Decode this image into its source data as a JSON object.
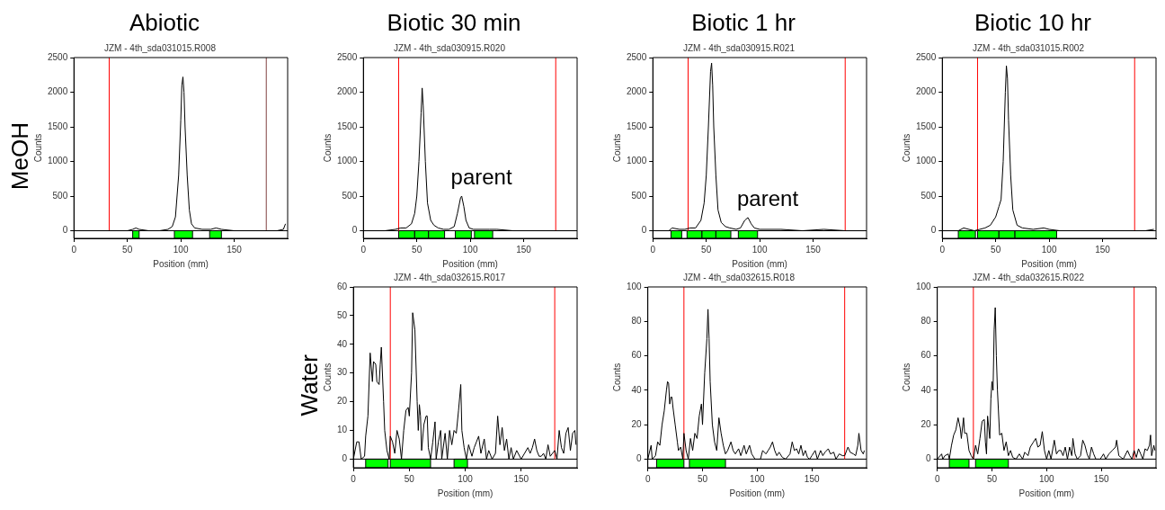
{
  "chart_data": [
    {
      "type": "line",
      "title": "Abiotic",
      "subtitle": "JZM - 4th_sda031015.R008",
      "xlabel": "Position (mm)",
      "ylabel": "Counts",
      "annotations": [
        "MeOH"
      ],
      "xlim": [
        0,
        200
      ],
      "xticks": [
        0,
        50,
        100,
        150
      ],
      "ylim": [
        -110,
        2500
      ],
      "yticks": [
        0,
        500,
        1000,
        1500,
        2000,
        2500
      ],
      "grid": false,
      "legend": false,
      "marker": "none",
      "series": [
        {
          "color": "#000000",
          "x": [
            0,
            10,
            20,
            30,
            40,
            50,
            55,
            58,
            61,
            70,
            80,
            88,
            92,
            95,
            98,
            100,
            101,
            102,
            103,
            104,
            106,
            108,
            110,
            113,
            120,
            128,
            133,
            138,
            150,
            160,
            170,
            180,
            190,
            196,
            198
          ],
          "values": [
            0,
            0,
            0,
            0,
            0,
            0,
            20,
            40,
            20,
            0,
            0,
            20,
            60,
            200,
            800,
            1600,
            2100,
            2220,
            2000,
            1500,
            800,
            300,
            100,
            40,
            20,
            20,
            40,
            20,
            0,
            0,
            0,
            0,
            0,
            20,
            100
          ]
        }
      ],
      "ref_lines": [
        {
          "axis": "y",
          "value": 0,
          "color": "#000000"
        },
        {
          "axis": "x",
          "value": 33,
          "color": "#ff0000"
        },
        {
          "axis": "x",
          "value": 180,
          "color": "#804040"
        }
      ],
      "bands": [
        {
          "axis": "x",
          "from": 55,
          "to": 61,
          "color": "#00ff00"
        },
        {
          "axis": "x",
          "from": 94,
          "to": 111,
          "color": "#00ff00"
        },
        {
          "axis": "x",
          "from": 127,
          "to": 138,
          "color": "#00ff00"
        }
      ]
    },
    {
      "type": "line",
      "title": "Biotic 30 min",
      "subtitle": "JZM - 4th_sda030915.R020",
      "xlabel": "Position (mm)",
      "ylabel": "Counts",
      "annotations": [
        {
          "text": "parent",
          "x": 92,
          "y": 500
        }
      ],
      "xlim": [
        0,
        200
      ],
      "xticks": [
        0,
        50,
        100,
        150
      ],
      "ylim": [
        -110,
        2500
      ],
      "yticks": [
        0,
        500,
        1000,
        1500,
        2000,
        2500
      ],
      "grid": false,
      "legend": false,
      "marker": "none",
      "series": [
        {
          "color": "#000000",
          "x": [
            0,
            10,
            20,
            30,
            35,
            40,
            45,
            48,
            50,
            52,
            54,
            55,
            56,
            58,
            60,
            63,
            66,
            70,
            75,
            80,
            85,
            88,
            91,
            92,
            94,
            96,
            99,
            103,
            110,
            118,
            125,
            140,
            160,
            180,
            198
          ],
          "values": [
            0,
            0,
            0,
            20,
            40,
            40,
            100,
            250,
            500,
            1000,
            1700,
            2060,
            1800,
            1000,
            400,
            150,
            80,
            40,
            20,
            20,
            60,
            250,
            480,
            500,
            350,
            150,
            40,
            20,
            20,
            20,
            20,
            0,
            0,
            0,
            0
          ]
        }
      ],
      "ref_lines": [
        {
          "axis": "y",
          "value": 0,
          "color": "#000000"
        },
        {
          "axis": "x",
          "value": 33,
          "color": "#ff0000"
        },
        {
          "axis": "x",
          "value": 180,
          "color": "#ff0000"
        }
      ],
      "bands": [
        {
          "axis": "x",
          "from": 33,
          "to": 48,
          "color": "#00ff00"
        },
        {
          "axis": "x",
          "from": 48,
          "to": 61,
          "color": "#00ff00"
        },
        {
          "axis": "x",
          "from": 61,
          "to": 76,
          "color": "#00ff00"
        },
        {
          "axis": "x",
          "from": 86,
          "to": 101,
          "color": "#00ff00"
        },
        {
          "axis": "x",
          "from": 104,
          "to": 121,
          "color": "#00ff00"
        }
      ]
    },
    {
      "type": "line",
      "title": "Biotic 1 hr",
      "subtitle": "JZM - 4th_sda030915.R021",
      "xlabel": "Position (mm)",
      "ylabel": "Counts",
      "annotations": [
        {
          "text": "parent",
          "x": 89,
          "y": 190
        }
      ],
      "xlim": [
        0,
        200
      ],
      "xticks": [
        0,
        50,
        100,
        150
      ],
      "ylim": [
        -110,
        2500
      ],
      "yticks": [
        0,
        500,
        1000,
        1500,
        2000,
        2500
      ],
      "grid": false,
      "legend": false,
      "marker": "none",
      "series": [
        {
          "color": "#000000",
          "x": [
            0,
            15,
            18,
            25,
            30,
            35,
            40,
            45,
            48,
            50,
            52,
            54,
            55,
            56,
            57,
            59,
            61,
            64,
            68,
            72,
            78,
            82,
            86,
            89,
            92,
            95,
            100,
            120,
            140,
            160,
            180,
            198
          ],
          "values": [
            0,
            0,
            40,
            20,
            20,
            40,
            40,
            150,
            400,
            800,
            1500,
            2300,
            2420,
            2100,
            1500,
            800,
            300,
            120,
            60,
            40,
            20,
            40,
            150,
            190,
            100,
            40,
            20,
            20,
            0,
            20,
            0,
            0
          ]
        }
      ],
      "ref_lines": [
        {
          "axis": "y",
          "value": 0,
          "color": "#000000"
        },
        {
          "axis": "x",
          "value": 33,
          "color": "#ff0000"
        },
        {
          "axis": "x",
          "value": 180,
          "color": "#ff0000"
        }
      ],
      "bands": [
        {
          "axis": "x",
          "from": 17,
          "to": 27,
          "color": "#00ff00"
        },
        {
          "axis": "x",
          "from": 32,
          "to": 46,
          "color": "#00ff00"
        },
        {
          "axis": "x",
          "from": 46,
          "to": 59,
          "color": "#00ff00"
        },
        {
          "axis": "x",
          "from": 59,
          "to": 73,
          "color": "#00ff00"
        },
        {
          "axis": "x",
          "from": 80,
          "to": 98,
          "color": "#00ff00"
        }
      ]
    },
    {
      "type": "line",
      "title": "Biotic 10 hr",
      "subtitle": "JZM - 4th_sda031015.R002",
      "xlabel": "Position (mm)",
      "ylabel": "Counts",
      "xlim": [
        0,
        200
      ],
      "xticks": [
        0,
        50,
        100,
        150
      ],
      "ylim": [
        -110,
        2500
      ],
      "yticks": [
        0,
        500,
        1000,
        1500,
        2000,
        2500
      ],
      "grid": false,
      "legend": false,
      "marker": "none",
      "series": [
        {
          "color": "#000000",
          "x": [
            0,
            15,
            20,
            25,
            30,
            35,
            40,
            45,
            50,
            53,
            55,
            57,
            59,
            60,
            61,
            62,
            64,
            66,
            70,
            75,
            85,
            95,
            100,
            110,
            130,
            150,
            170,
            190,
            198
          ],
          "values": [
            0,
            0,
            40,
            20,
            0,
            20,
            40,
            80,
            200,
            350,
            450,
            1000,
            2000,
            2380,
            2200,
            1600,
            800,
            300,
            80,
            40,
            20,
            40,
            20,
            0,
            0,
            0,
            0,
            0,
            20
          ]
        }
      ],
      "ref_lines": [
        {
          "axis": "y",
          "value": 0,
          "color": "#000000"
        },
        {
          "axis": "x",
          "value": 33,
          "color": "#ff0000"
        },
        {
          "axis": "x",
          "value": 180,
          "color": "#ff0000"
        }
      ],
      "bands": [
        {
          "axis": "x",
          "from": 15,
          "to": 31,
          "color": "#00ff00"
        },
        {
          "axis": "x",
          "from": 33,
          "to": 53,
          "color": "#00ff00"
        },
        {
          "axis": "x",
          "from": 53,
          "to": 68,
          "color": "#00ff00"
        },
        {
          "axis": "x",
          "from": 68,
          "to": 107,
          "color": "#00ff00"
        }
      ]
    },
    {
      "type": "line",
      "subtitle": "JZM - 4th_sda032615.R017",
      "xlabel": "Position (mm)",
      "ylabel": "Counts",
      "annotations": [
        "Water"
      ],
      "xlim": [
        0,
        200
      ],
      "xticks": [
        0,
        50,
        100,
        150
      ],
      "ylim": [
        -3,
        60
      ],
      "yticks": [
        0,
        10,
        20,
        30,
        40,
        50,
        60
      ],
      "grid": false,
      "legend": false,
      "marker": "none",
      "series": [
        {
          "color": "#000000",
          "x": [
            0,
            3,
            5,
            7,
            10,
            11,
            13,
            15,
            17,
            18,
            20,
            21,
            23,
            24,
            25,
            27,
            28,
            30,
            32,
            33,
            35,
            37,
            39,
            41,
            43,
            45,
            47,
            49,
            50,
            52,
            53,
            55,
            57,
            58,
            59,
            60,
            61,
            63,
            65,
            66,
            67,
            69,
            71,
            73,
            74,
            76,
            78,
            79,
            82,
            84,
            86,
            88,
            90,
            92,
            94,
            96,
            97,
            99,
            101,
            103,
            106,
            108,
            110,
            112,
            114,
            117,
            119,
            121,
            124,
            127,
            129,
            131,
            133,
            135,
            137,
            139,
            141,
            143,
            146,
            150,
            153,
            156,
            158,
            160,
            162,
            164,
            166,
            168,
            170,
            172,
            174,
            176,
            178,
            180,
            182,
            184,
            186,
            188,
            190,
            192,
            194,
            196,
            198,
            199
          ],
          "values": [
            0,
            6,
            6,
            0,
            1,
            8,
            15,
            37,
            27,
            34,
            33,
            27,
            26,
            33,
            39,
            20,
            10,
            3,
            0,
            8,
            6,
            2,
            10,
            7,
            0,
            10,
            17,
            18,
            15,
            30,
            51,
            45,
            20,
            10,
            19,
            15,
            3,
            12,
            15,
            15,
            4,
            0,
            6,
            13,
            0,
            6,
            10,
            0,
            9,
            0,
            10,
            5,
            10,
            9,
            17,
            26,
            10,
            4,
            0,
            5,
            1,
            4,
            6,
            8,
            2,
            7,
            0,
            3,
            0,
            2,
            15,
            5,
            11,
            3,
            7,
            0,
            4,
            0,
            3,
            0,
            2,
            4,
            2,
            4,
            7,
            3,
            1,
            1,
            2,
            0,
            5,
            1,
            2,
            3,
            0,
            10,
            4,
            2,
            9,
            11,
            3,
            9,
            10,
            5
          ]
        }
      ],
      "ref_lines": [
        {
          "axis": "y",
          "value": 0,
          "color": "#000000"
        },
        {
          "axis": "x",
          "value": 33,
          "color": "#ff0000"
        },
        {
          "axis": "x",
          "value": 180,
          "color": "#ff0000"
        }
      ],
      "bands": [
        {
          "axis": "x",
          "from": 11,
          "to": 31,
          "color": "#00ff00"
        },
        {
          "axis": "x",
          "from": 33,
          "to": 69,
          "color": "#00ff00"
        },
        {
          "axis": "x",
          "from": 90,
          "to": 102,
          "color": "#00ff00"
        }
      ]
    },
    {
      "type": "line",
      "subtitle": "JZM - 4th_sda032615.R018",
      "xlabel": "Position (mm)",
      "ylabel": "Counts",
      "xlim": [
        0,
        200
      ],
      "xticks": [
        0,
        50,
        100,
        150
      ],
      "ylim": [
        -5,
        100
      ],
      "yticks": [
        0,
        20,
        40,
        60,
        80,
        100
      ],
      "grid": false,
      "legend": false,
      "marker": "none",
      "series": [
        {
          "color": "#000000",
          "x": [
            0,
            3,
            4,
            7,
            9,
            11,
            13,
            15,
            17,
            18,
            19,
            20,
            21,
            22,
            23,
            25,
            27,
            28,
            30,
            32,
            33,
            35,
            37,
            39,
            41,
            43,
            45,
            47,
            49,
            50,
            52,
            54,
            55,
            56,
            57,
            59,
            61,
            63,
            65,
            67,
            69,
            71,
            73,
            76,
            78,
            80,
            83,
            85,
            88,
            90,
            93,
            95,
            98,
            103,
            105,
            108,
            110,
            112,
            114,
            116,
            118,
            120,
            123,
            126,
            130,
            132,
            134,
            136,
            138,
            140,
            142,
            144,
            146,
            148,
            150,
            153,
            155,
            158,
            160,
            162,
            165,
            167,
            170,
            172,
            175,
            178,
            180,
            183,
            185,
            188,
            190,
            192,
            193,
            195,
            197,
            198
          ],
          "values": [
            0,
            8,
            0,
            2,
            10,
            8,
            20,
            28,
            40,
            45,
            44,
            32,
            36,
            36,
            30,
            20,
            10,
            5,
            7,
            0,
            15,
            5,
            0,
            12,
            5,
            15,
            12,
            25,
            32,
            20,
            50,
            70,
            87,
            70,
            45,
            20,
            10,
            5,
            24,
            15,
            8,
            3,
            5,
            10,
            5,
            3,
            6,
            2,
            8,
            3,
            8,
            3,
            0,
            0,
            5,
            3,
            5,
            7,
            10,
            5,
            2,
            4,
            1,
            0,
            3,
            10,
            5,
            6,
            3,
            8,
            2,
            5,
            1,
            0,
            2,
            5,
            0,
            5,
            2,
            4,
            6,
            3,
            4,
            0,
            3,
            2,
            2,
            7,
            4,
            3,
            2,
            8,
            15,
            5,
            3,
            5
          ]
        }
      ],
      "ref_lines": [
        {
          "axis": "y",
          "value": 0,
          "color": "#000000"
        },
        {
          "axis": "x",
          "value": 33,
          "color": "#ff0000"
        },
        {
          "axis": "x",
          "value": 180,
          "color": "#ff0000"
        }
      ],
      "bands": [
        {
          "axis": "x",
          "from": 8,
          "to": 33,
          "color": "#00ff00"
        },
        {
          "axis": "x",
          "from": 38,
          "to": 71,
          "color": "#00ff00"
        }
      ]
    },
    {
      "type": "line",
      "subtitle": "JZM - 4th_sda032615.R022",
      "xlabel": "Position (mm)",
      "ylabel": "Counts",
      "xlim": [
        0,
        200
      ],
      "xticks": [
        0,
        50,
        100,
        150
      ],
      "ylim": [
        -5,
        100
      ],
      "yticks": [
        0,
        20,
        40,
        60,
        80,
        100
      ],
      "grid": false,
      "legend": false,
      "marker": "none",
      "series": [
        {
          "color": "#000000",
          "x": [
            0,
            4,
            5,
            7,
            10,
            11,
            13,
            15,
            17,
            19,
            21,
            22,
            24,
            25,
            27,
            29,
            31,
            33,
            35,
            37,
            39,
            41,
            43,
            44,
            45,
            46,
            48,
            49,
            50,
            51,
            52,
            53,
            54,
            55,
            57,
            59,
            61,
            63,
            65,
            67,
            69,
            72,
            75,
            78,
            80,
            83,
            85,
            88,
            90,
            92,
            94,
            96,
            98,
            100,
            102,
            104,
            107,
            109,
            111,
            113,
            115,
            117,
            119,
            121,
            123,
            124,
            126,
            128,
            131,
            133,
            135,
            137,
            139,
            141,
            143,
            145,
            149,
            152,
            154,
            157,
            160,
            163,
            164,
            166,
            170,
            174,
            176,
            178,
            180,
            182,
            184,
            186,
            188,
            190,
            192,
            194,
            195,
            196,
            198,
            199
          ],
          "values": [
            0,
            3,
            0,
            2,
            3,
            0,
            8,
            14,
            17,
            24,
            18,
            12,
            24,
            15,
            15,
            5,
            2,
            0,
            8,
            3,
            12,
            22,
            23,
            10,
            3,
            25,
            12,
            35,
            45,
            40,
            75,
            88,
            60,
            40,
            14,
            15,
            5,
            10,
            2,
            5,
            1,
            0,
            3,
            0,
            4,
            2,
            7,
            10,
            12,
            7,
            8,
            16,
            5,
            0,
            5,
            0,
            11,
            3,
            5,
            5,
            2,
            7,
            0,
            7,
            2,
            12,
            3,
            0,
            2,
            11,
            8,
            3,
            0,
            7,
            3,
            0,
            0,
            3,
            0,
            3,
            5,
            7,
            11,
            2,
            0,
            5,
            2,
            0,
            5,
            1,
            6,
            3,
            0,
            6,
            5,
            8,
            14,
            2,
            8,
            5
          ]
        }
      ],
      "ref_lines": [
        {
          "axis": "y",
          "value": 0,
          "color": "#000000"
        },
        {
          "axis": "x",
          "value": 33,
          "color": "#ff0000"
        },
        {
          "axis": "x",
          "value": 180,
          "color": "#ff0000"
        }
      ],
      "bands": [
        {
          "axis": "x",
          "from": 11,
          "to": 29,
          "color": "#00ff00"
        },
        {
          "axis": "x",
          "from": 35,
          "to": 65,
          "color": "#00ff00"
        }
      ]
    }
  ]
}
